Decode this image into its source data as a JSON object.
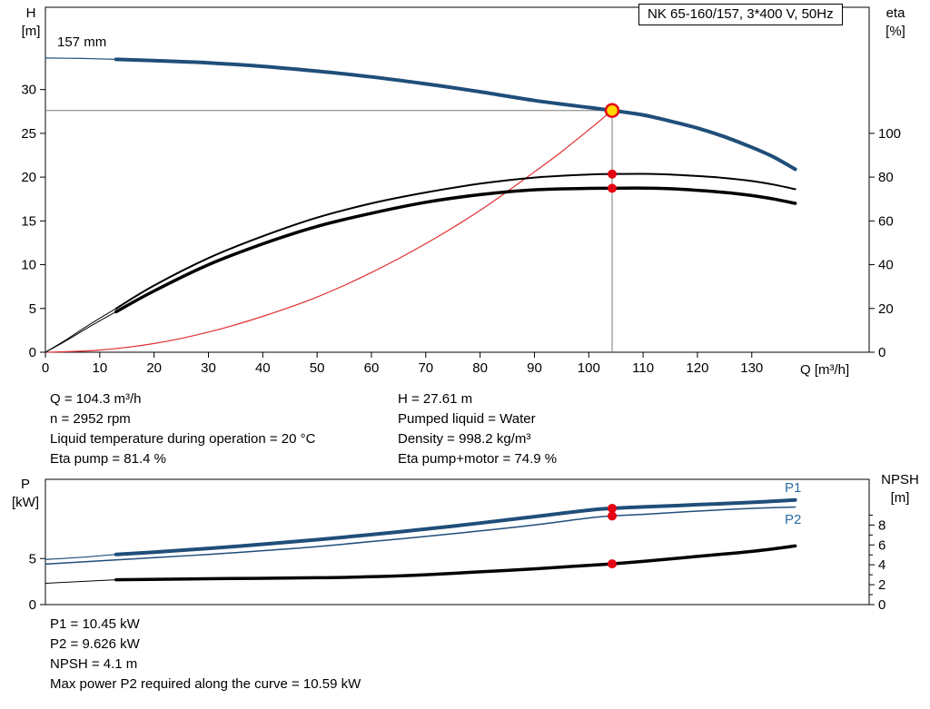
{
  "colors": {
    "curve_blue": "#1f4e79",
    "curve_black": "#000000",
    "system_curve_red": "#e03030",
    "dot_red": "#e30613",
    "duty_fill": "#ffd800",
    "duty_stroke": "#e30613",
    "ref_gray": "#7a7a7a",
    "label_blue": "#2e6da4"
  },
  "readouts": {
    "top_left": [
      "Q = 104.3 m³/h",
      "n = 2952 rpm",
      "Liquid temperature during operation = 20 °C",
      "Eta pump = 81.4 %"
    ],
    "top_right": [
      "H = 27.61 m",
      "Pumped liquid = Water",
      "Density = 998.2 kg/m³",
      "Eta pump+motor = 74.9 %"
    ],
    "bottom": [
      "P1 = 10.45 kW",
      "P2 = 9.626 kW",
      "NPSH = 4.1 m",
      "Max power P2 required along the curve = 10.59 kW"
    ]
  },
  "chart_data": [
    {
      "id": "hq",
      "type": "line",
      "title": "NK 65-160/157, 3*400 V, 50Hz",
      "x_label": "Q [m³/h]",
      "x_range": [
        0,
        151.6
      ],
      "x_ticks": [
        0,
        10,
        20,
        30,
        40,
        50,
        60,
        70,
        80,
        90,
        100,
        110,
        120,
        130
      ],
      "left_axis": {
        "label": "H",
        "unit": "[m]",
        "range": [
          0,
          39.4
        ],
        "ticks": [
          0,
          5,
          10,
          15,
          20,
          25,
          30
        ]
      },
      "right_axis": {
        "label": "eta",
        "unit": "[%]",
        "range": [
          0,
          157.6
        ],
        "ticks": [
          0,
          20,
          40,
          60,
          80,
          100
        ]
      },
      "annotations": {
        "impeller": "157 mm"
      },
      "duty_point": {
        "Q": 104.3,
        "H": 27.61,
        "eta_pump": 81.4,
        "eta_pump_motor": 74.9
      },
      "ref_lines": [
        {
          "axis": "left",
          "pts": [
            [
              0,
              27.61
            ],
            [
              104.3,
              27.61
            ]
          ]
        },
        {
          "axis": "left",
          "pts": [
            [
              104.3,
              27.61
            ],
            [
              104.3,
              0
            ]
          ]
        }
      ],
      "series": [
        {
          "name": "system-curve",
          "axis": "left",
          "color": "#e03030",
          "width": 1.2,
          "points": [
            [
              0,
              0
            ],
            [
              10,
              0.25
            ],
            [
              20,
              1.0
            ],
            [
              30,
              2.3
            ],
            [
              40,
              4.1
            ],
            [
              50,
              6.3
            ],
            [
              60,
              9.1
            ],
            [
              70,
              12.4
            ],
            [
              80,
              16.2
            ],
            [
              90,
              20.6
            ],
            [
              95,
              22.9
            ],
            [
              100,
              25.4
            ],
            [
              104.3,
              27.61
            ]
          ]
        },
        {
          "name": "eta-pump-lead-in",
          "axis": "right",
          "color": "#000000",
          "width": 1,
          "points": [
            [
              0,
              0
            ],
            [
              4,
              6
            ],
            [
              8,
              12.5
            ],
            [
              13,
              20
            ]
          ]
        },
        {
          "name": "eta-pump",
          "axis": "right",
          "color": "#000000",
          "width": 2,
          "points": [
            [
              13,
              20
            ],
            [
              20,
              30.5
            ],
            [
              30,
              43
            ],
            [
              40,
              53
            ],
            [
              50,
              61.5
            ],
            [
              60,
              68
            ],
            [
              70,
              73
            ],
            [
              80,
              77
            ],
            [
              90,
              79.8
            ],
            [
              100,
              81.2
            ],
            [
              104.3,
              81.4
            ],
            [
              110,
              81.5
            ],
            [
              115,
              81.2
            ],
            [
              120,
              80.5
            ],
            [
              125,
              79.6
            ],
            [
              130,
              78.2
            ],
            [
              134,
              76.6
            ],
            [
              138,
              74.5
            ]
          ]
        },
        {
          "name": "eta-pump-motor-lead-in",
          "axis": "right",
          "color": "#000000",
          "width": 1,
          "points": [
            [
              0,
              0
            ],
            [
              4,
              5.5
            ],
            [
              8,
              11.5
            ],
            [
              13,
              18.5
            ]
          ]
        },
        {
          "name": "eta-pump-motor",
          "axis": "right",
          "color": "#000000",
          "width": 3.5,
          "points": [
            [
              13,
              18.5
            ],
            [
              20,
              28
            ],
            [
              30,
              40
            ],
            [
              40,
              49.5
            ],
            [
              50,
              57.5
            ],
            [
              60,
              63.5
            ],
            [
              70,
              68.5
            ],
            [
              80,
              72
            ],
            [
              90,
              74.2
            ],
            [
              100,
              74.85
            ],
            [
              104.3,
              74.9
            ],
            [
              110,
              75
            ],
            [
              115,
              74.7
            ],
            [
              120,
              74
            ],
            [
              125,
              73
            ],
            [
              130,
              71.6
            ],
            [
              134,
              70
            ],
            [
              138,
              68
            ]
          ]
        },
        {
          "name": "head-lead-in",
          "axis": "left",
          "color": "#1f4e79",
          "width": 1.2,
          "points": [
            [
              0,
              33.6
            ],
            [
              7,
              33.55
            ],
            [
              13,
              33.45
            ]
          ]
        },
        {
          "name": "head-157mm",
          "axis": "left",
          "color": "#1f4e79",
          "width": 4,
          "points": [
            [
              13,
              33.45
            ],
            [
              20,
              33.3
            ],
            [
              30,
              33.05
            ],
            [
              40,
              32.65
            ],
            [
              50,
              32.1
            ],
            [
              60,
              31.45
            ],
            [
              70,
              30.65
            ],
            [
              80,
              29.75
            ],
            [
              90,
              28.75
            ],
            [
              100,
              27.95
            ],
            [
              104.3,
              27.61
            ],
            [
              110,
              27.1
            ],
            [
              115,
              26.4
            ],
            [
              120,
              25.6
            ],
            [
              125,
              24.6
            ],
            [
              130,
              23.4
            ],
            [
              134,
              22.3
            ],
            [
              138,
              20.9
            ]
          ]
        }
      ],
      "markers": [
        {
          "style": "dot",
          "x": 104.3,
          "value": 81.4,
          "axis": "right"
        },
        {
          "style": "dot",
          "x": 104.3,
          "value": 74.9,
          "axis": "right"
        },
        {
          "style": "duty",
          "x": 104.3,
          "value": 27.61,
          "axis": "left"
        }
      ]
    },
    {
      "id": "pn",
      "type": "line",
      "title": "",
      "x_label": "",
      "x_range": [
        0,
        151.6
      ],
      "x_ticks": [],
      "left_axis": {
        "label": "P",
        "unit": "[kW]",
        "range": [
          0,
          13.6
        ],
        "ticks": [
          0,
          5
        ]
      },
      "right_axis": {
        "label": "NPSH",
        "unit": "[m]",
        "range": [
          0,
          12.6
        ],
        "ticks": [
          0,
          2,
          4,
          6,
          8
        ],
        "minor_ticks": [
          1,
          3,
          5,
          7,
          9
        ]
      },
      "curve_labels": {
        "p1": "P1",
        "p2": "P2"
      },
      "duty_point": {
        "Q": 104.3,
        "P1": 10.45,
        "P2": 9.626,
        "NPSH": 4.1
      },
      "series": [
        {
          "name": "p2",
          "axis": "left",
          "color": "#1f4e79",
          "width": 1.5,
          "points": [
            [
              0,
              4.4
            ],
            [
              13,
              4.85
            ],
            [
              20,
              5.1
            ],
            [
              30,
              5.45
            ],
            [
              40,
              5.85
            ],
            [
              50,
              6.3
            ],
            [
              60,
              6.85
            ],
            [
              70,
              7.4
            ],
            [
              80,
              8.0
            ],
            [
              90,
              8.65
            ],
            [
              100,
              9.4
            ],
            [
              104.3,
              9.626
            ],
            [
              110,
              9.8
            ],
            [
              120,
              10.15
            ],
            [
              130,
              10.45
            ],
            [
              138,
              10.59
            ]
          ]
        },
        {
          "name": "p1-lead-in",
          "axis": "left",
          "color": "#1f4e79",
          "width": 1.2,
          "points": [
            [
              0,
              4.9
            ],
            [
              7,
              5.15
            ],
            [
              13,
              5.45
            ]
          ]
        },
        {
          "name": "p1",
          "axis": "left",
          "color": "#1f4e79",
          "width": 4,
          "points": [
            [
              13,
              5.45
            ],
            [
              20,
              5.7
            ],
            [
              30,
              6.1
            ],
            [
              40,
              6.55
            ],
            [
              50,
              7.05
            ],
            [
              60,
              7.6
            ],
            [
              70,
              8.2
            ],
            [
              80,
              8.85
            ],
            [
              90,
              9.55
            ],
            [
              100,
              10.25
            ],
            [
              104.3,
              10.45
            ],
            [
              110,
              10.6
            ],
            [
              120,
              10.85
            ],
            [
              130,
              11.1
            ],
            [
              138,
              11.35
            ]
          ]
        },
        {
          "name": "npsh-lead-in",
          "axis": "right",
          "color": "#000000",
          "width": 1,
          "points": [
            [
              0,
              2.15
            ],
            [
              13,
              2.5
            ]
          ]
        },
        {
          "name": "npsh",
          "axis": "right",
          "color": "#000000",
          "width": 3.5,
          "points": [
            [
              13,
              2.5
            ],
            [
              30,
              2.6
            ],
            [
              50,
              2.7
            ],
            [
              60,
              2.8
            ],
            [
              70,
              3.0
            ],
            [
              80,
              3.3
            ],
            [
              90,
              3.6
            ],
            [
              100,
              3.95
            ],
            [
              104.3,
              4.1
            ],
            [
              110,
              4.35
            ],
            [
              120,
              4.85
            ],
            [
              130,
              5.35
            ],
            [
              138,
              5.9
            ]
          ]
        }
      ],
      "markers": [
        {
          "style": "dot",
          "x": 104.3,
          "value": 10.45,
          "axis": "left"
        },
        {
          "style": "dot",
          "x": 104.3,
          "value": 9.626,
          "axis": "left"
        },
        {
          "style": "dot",
          "x": 104.3,
          "value": 4.1,
          "axis": "right"
        }
      ]
    }
  ]
}
